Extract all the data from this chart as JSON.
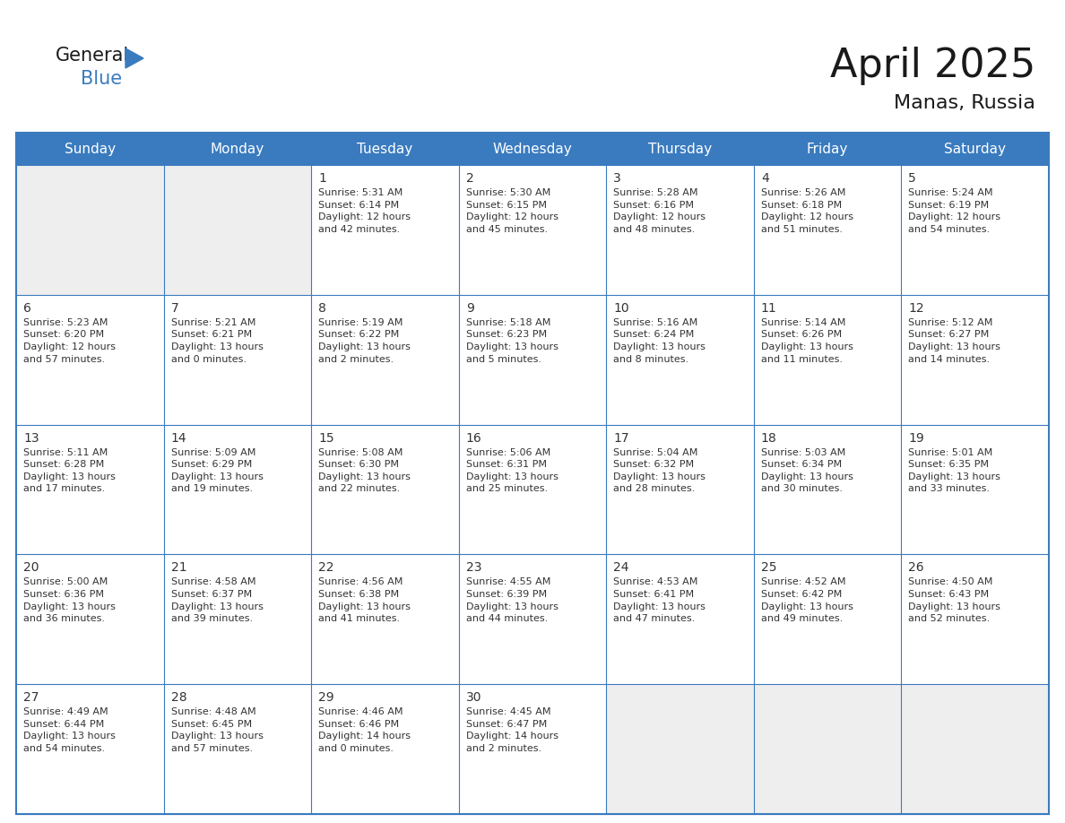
{
  "title": "April 2025",
  "subtitle": "Manas, Russia",
  "header_color": "#3a7bbf",
  "header_text_color": "#ffffff",
  "cell_bg_color": "#ffffff",
  "empty_cell_bg_color": "#eeeeee",
  "border_color": "#3a7bbf",
  "text_color": "#333333",
  "days_of_week": [
    "Sunday",
    "Monday",
    "Tuesday",
    "Wednesday",
    "Thursday",
    "Friday",
    "Saturday"
  ],
  "weeks": [
    [
      {
        "day": "",
        "info": ""
      },
      {
        "day": "",
        "info": ""
      },
      {
        "day": "1",
        "info": "Sunrise: 5:31 AM\nSunset: 6:14 PM\nDaylight: 12 hours\nand 42 minutes."
      },
      {
        "day": "2",
        "info": "Sunrise: 5:30 AM\nSunset: 6:15 PM\nDaylight: 12 hours\nand 45 minutes."
      },
      {
        "day": "3",
        "info": "Sunrise: 5:28 AM\nSunset: 6:16 PM\nDaylight: 12 hours\nand 48 minutes."
      },
      {
        "day": "4",
        "info": "Sunrise: 5:26 AM\nSunset: 6:18 PM\nDaylight: 12 hours\nand 51 minutes."
      },
      {
        "day": "5",
        "info": "Sunrise: 5:24 AM\nSunset: 6:19 PM\nDaylight: 12 hours\nand 54 minutes."
      }
    ],
    [
      {
        "day": "6",
        "info": "Sunrise: 5:23 AM\nSunset: 6:20 PM\nDaylight: 12 hours\nand 57 minutes."
      },
      {
        "day": "7",
        "info": "Sunrise: 5:21 AM\nSunset: 6:21 PM\nDaylight: 13 hours\nand 0 minutes."
      },
      {
        "day": "8",
        "info": "Sunrise: 5:19 AM\nSunset: 6:22 PM\nDaylight: 13 hours\nand 2 minutes."
      },
      {
        "day": "9",
        "info": "Sunrise: 5:18 AM\nSunset: 6:23 PM\nDaylight: 13 hours\nand 5 minutes."
      },
      {
        "day": "10",
        "info": "Sunrise: 5:16 AM\nSunset: 6:24 PM\nDaylight: 13 hours\nand 8 minutes."
      },
      {
        "day": "11",
        "info": "Sunrise: 5:14 AM\nSunset: 6:26 PM\nDaylight: 13 hours\nand 11 minutes."
      },
      {
        "day": "12",
        "info": "Sunrise: 5:12 AM\nSunset: 6:27 PM\nDaylight: 13 hours\nand 14 minutes."
      }
    ],
    [
      {
        "day": "13",
        "info": "Sunrise: 5:11 AM\nSunset: 6:28 PM\nDaylight: 13 hours\nand 17 minutes."
      },
      {
        "day": "14",
        "info": "Sunrise: 5:09 AM\nSunset: 6:29 PM\nDaylight: 13 hours\nand 19 minutes."
      },
      {
        "day": "15",
        "info": "Sunrise: 5:08 AM\nSunset: 6:30 PM\nDaylight: 13 hours\nand 22 minutes."
      },
      {
        "day": "16",
        "info": "Sunrise: 5:06 AM\nSunset: 6:31 PM\nDaylight: 13 hours\nand 25 minutes."
      },
      {
        "day": "17",
        "info": "Sunrise: 5:04 AM\nSunset: 6:32 PM\nDaylight: 13 hours\nand 28 minutes."
      },
      {
        "day": "18",
        "info": "Sunrise: 5:03 AM\nSunset: 6:34 PM\nDaylight: 13 hours\nand 30 minutes."
      },
      {
        "day": "19",
        "info": "Sunrise: 5:01 AM\nSunset: 6:35 PM\nDaylight: 13 hours\nand 33 minutes."
      }
    ],
    [
      {
        "day": "20",
        "info": "Sunrise: 5:00 AM\nSunset: 6:36 PM\nDaylight: 13 hours\nand 36 minutes."
      },
      {
        "day": "21",
        "info": "Sunrise: 4:58 AM\nSunset: 6:37 PM\nDaylight: 13 hours\nand 39 minutes."
      },
      {
        "day": "22",
        "info": "Sunrise: 4:56 AM\nSunset: 6:38 PM\nDaylight: 13 hours\nand 41 minutes."
      },
      {
        "day": "23",
        "info": "Sunrise: 4:55 AM\nSunset: 6:39 PM\nDaylight: 13 hours\nand 44 minutes."
      },
      {
        "day": "24",
        "info": "Sunrise: 4:53 AM\nSunset: 6:41 PM\nDaylight: 13 hours\nand 47 minutes."
      },
      {
        "day": "25",
        "info": "Sunrise: 4:52 AM\nSunset: 6:42 PM\nDaylight: 13 hours\nand 49 minutes."
      },
      {
        "day": "26",
        "info": "Sunrise: 4:50 AM\nSunset: 6:43 PM\nDaylight: 13 hours\nand 52 minutes."
      }
    ],
    [
      {
        "day": "27",
        "info": "Sunrise: 4:49 AM\nSunset: 6:44 PM\nDaylight: 13 hours\nand 54 minutes."
      },
      {
        "day": "28",
        "info": "Sunrise: 4:48 AM\nSunset: 6:45 PM\nDaylight: 13 hours\nand 57 minutes."
      },
      {
        "day": "29",
        "info": "Sunrise: 4:46 AM\nSunset: 6:46 PM\nDaylight: 14 hours\nand 0 minutes."
      },
      {
        "day": "30",
        "info": "Sunrise: 4:45 AM\nSunset: 6:47 PM\nDaylight: 14 hours\nand 2 minutes."
      },
      {
        "day": "",
        "info": ""
      },
      {
        "day": "",
        "info": ""
      },
      {
        "day": "",
        "info": ""
      }
    ]
  ],
  "logo_color_general": "#1a1a1a",
  "logo_color_blue": "#3a7bbf",
  "logo_triangle_color": "#3a7bbf",
  "title_fontsize": 32,
  "subtitle_fontsize": 16,
  "header_fontsize": 11,
  "day_num_fontsize": 10,
  "info_fontsize": 8
}
